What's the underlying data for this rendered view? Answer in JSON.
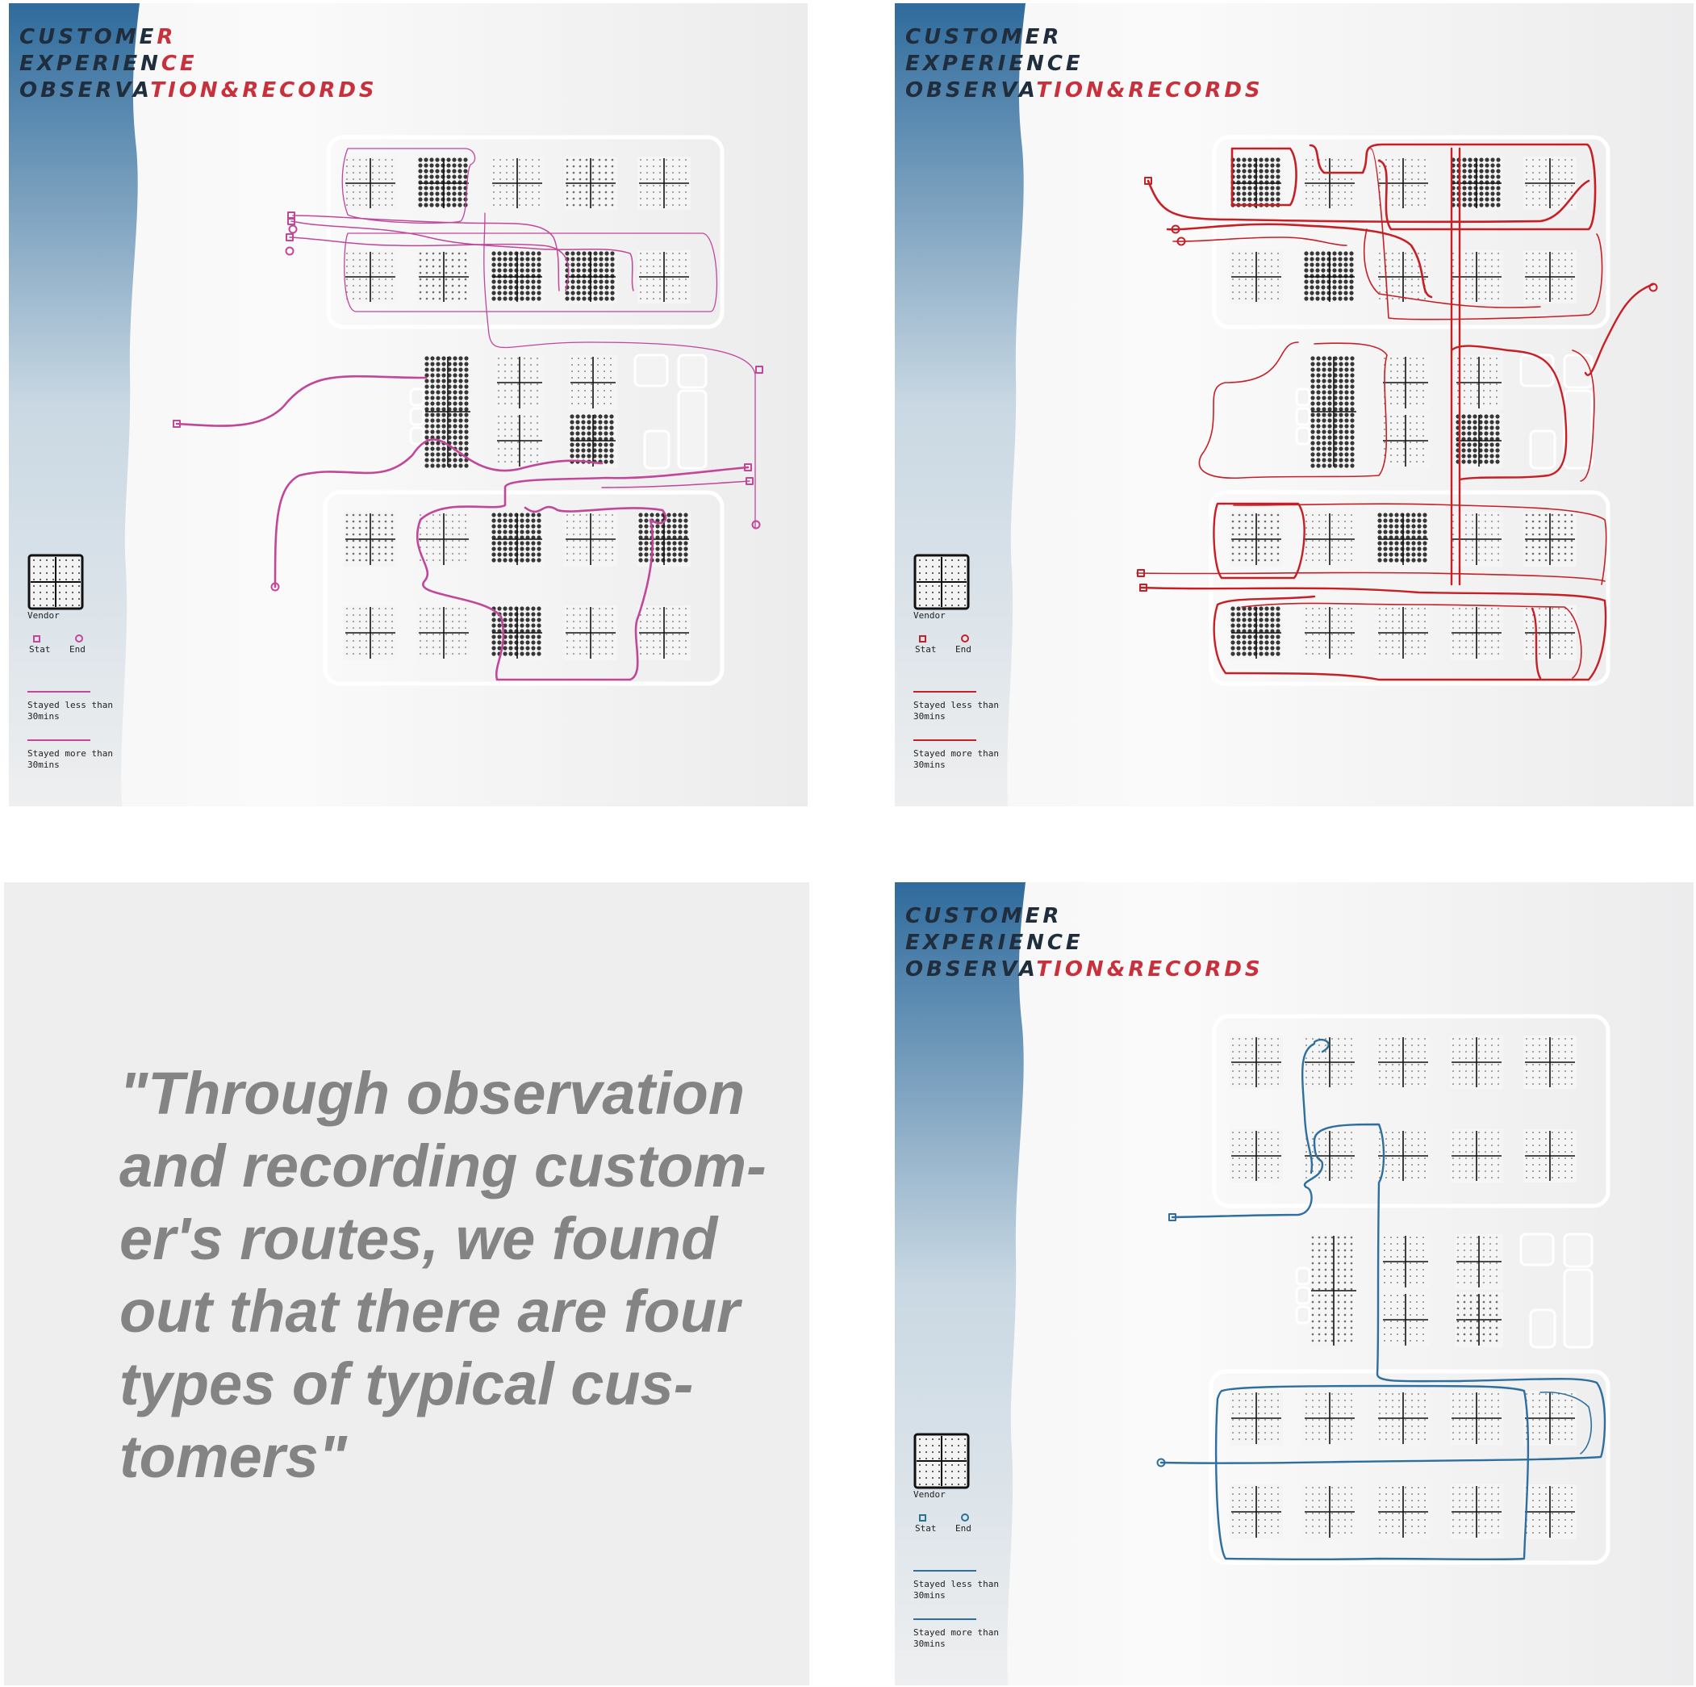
{
  "panels": [
    {
      "id": "top-left",
      "title_lines": [
        {
          "dark": "CUSTOME",
          "red": "R"
        },
        {
          "dark": "EXPERIEN",
          "red": "CE"
        },
        {
          "dark": "OBSERVA",
          "red": "TION&RECORDS"
        }
      ],
      "route_color": "#c0479a",
      "legend": {
        "vendor": "Vendor",
        "start": "Stat",
        "end": "End",
        "less": "Stayed less than\n30mins",
        "more": "Stayed more than\n30mins"
      }
    },
    {
      "id": "top-right",
      "title_lines": [
        {
          "dark": "CUSTOMER",
          "red": ""
        },
        {
          "dark": "EXPERIENCE",
          "red": ""
        },
        {
          "dark": "OBSERVA",
          "red": "TION&RECORDS"
        }
      ],
      "route_color": "#c71f26",
      "legend": {
        "vendor": "Vendor",
        "start": "Stat",
        "end": "End",
        "less": "Stayed less than\n30mins",
        "more": "Stayed more than\n30mins"
      }
    },
    {
      "id": "bottom-right",
      "title_lines": [
        {
          "dark": "CUSTOMER",
          "red": ""
        },
        {
          "dark": "EXPERIENCE",
          "red": ""
        },
        {
          "dark": "OBSERVA",
          "red": "TION&RECORDS"
        }
      ],
      "route_color": "#2e6f9e",
      "legend": {
        "vendor": "Vendor",
        "start": "Stat",
        "end": "End",
        "less": "Stayed less than\n30mins",
        "more": "Stayed more than\n30mins"
      }
    }
  ],
  "quote": {
    "lines": [
      "\"Through observation",
      "and recording custom-",
      "er's routes, we found",
      "out that there are four",
      "types of typical cus-",
      "tomers\""
    ]
  },
  "colors": {
    "title_red": "#c8313c",
    "title_dark": "#1f2d3d",
    "side_blue": "#2f6b9c",
    "quote_grey": "#848484",
    "panel_bg": "#eeefef"
  }
}
